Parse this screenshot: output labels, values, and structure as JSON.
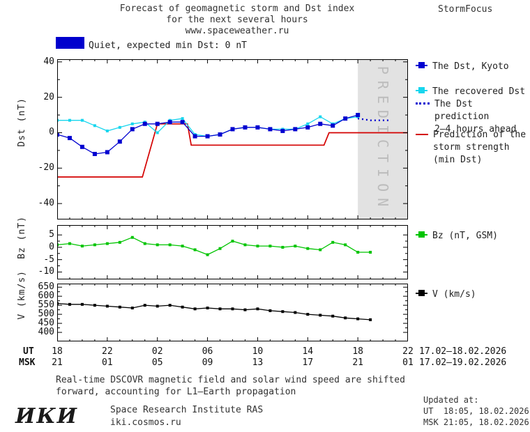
{
  "header": {
    "title_line1": "Forecast of geomagnetic storm and Dst index",
    "title_line2": "for the next several hours",
    "title_line3": "www.spaceweather.ru",
    "brand": "StormFocus"
  },
  "status": {
    "label": "Quiet, expected min Dst: 0 nT",
    "color": "#0000cd"
  },
  "legend": {
    "dst_kyoto": "The Dst, Kyoto",
    "recovered": "The recovered Dst",
    "prediction_l1": "The Dst prediction",
    "prediction_l2": "2—4 hours ahead",
    "storm_l1": "Prediction of the",
    "storm_l2": "storm strength",
    "storm_l3": "(min Dst)",
    "bz": "Bz (nT, GSM)",
    "v": "V (km/s)"
  },
  "axes": {
    "ut_label": "UT",
    "msk_label": "MSK",
    "xtick_hours": [
      0,
      4,
      8,
      12,
      16,
      20,
      24,
      28
    ],
    "ut_ticks": [
      "18",
      "22",
      "02",
      "06",
      "10",
      "14",
      "18",
      "22"
    ],
    "msk_ticks": [
      "21",
      "01",
      "05",
      "09",
      "13",
      "17",
      "21",
      "01"
    ],
    "date_range_ut": "17.02—18.02.2026",
    "date_range_msk": "17.02—19.02.2026"
  },
  "footnote": {
    "line1": "Real-time DSCOVR magnetic field and solar wind speed are shifted",
    "line2": "forward, accounting for L1—Earth propagation"
  },
  "updated": {
    "label": "Updated at:",
    "ut": "UT  18:05, 18.02.2026",
    "msk": "MSK 21:05, 18.02.2026"
  },
  "footer": {
    "logo": "ИКИ",
    "org": "Space Research Institute RAS",
    "site": "iki.cosmos.ru"
  },
  "chart_data": [
    {
      "type": "line",
      "panel": "dst",
      "title": "Forecast of geomagnetic storm and Dst index for the next several hours",
      "subtitle": "www.spaceweather.ru",
      "ylabel": "Dst (nT)",
      "xlim": [
        0,
        28
      ],
      "ylim": [
        -49,
        41.5
      ],
      "yticks": [
        40,
        20,
        0,
        -20,
        -40
      ],
      "yticks_minor": [
        30,
        10,
        -10,
        -30
      ],
      "xtick_hours": [
        0,
        4,
        8,
        12,
        16,
        20,
        24,
        28
      ],
      "legend_position": "right",
      "prediction_zone": {
        "x": [
          24,
          28
        ],
        "label": "PREDICTION",
        "fill": "#e2e2e2",
        "text_color": "#bcbcbc"
      },
      "series": [
        {
          "name": "Prediction of the storm strength (min Dst)",
          "color": "#d40000",
          "style": "solid",
          "width": 1.7,
          "x": [
            0,
            6.8,
            8,
            10.4,
            10.7,
            21.3,
            21.7,
            28
          ],
          "values": [
            -25,
            -25,
            5,
            5,
            -7,
            -7,
            0,
            0
          ]
        },
        {
          "name": "The recovered Dst",
          "color": "#17d6ee",
          "style": "solid-squares",
          "width": 1.3,
          "marker_size": 4,
          "x": [
            0,
            1,
            2,
            3,
            4,
            5,
            6,
            7,
            8,
            9,
            10,
            11,
            12,
            13,
            14,
            15,
            16,
            17,
            18,
            19,
            20,
            21,
            22,
            23,
            24
          ],
          "values": [
            7,
            7,
            7,
            4,
            1,
            3,
            5,
            6,
            0,
            7,
            8,
            -1,
            -2,
            -1,
            2,
            3,
            3,
            2,
            2,
            2,
            5,
            9,
            5,
            8,
            9
          ]
        },
        {
          "name": "The Dst, Kyoto",
          "color": "#0000d0",
          "style": "solid-squares",
          "width": 1.3,
          "marker_size": 6,
          "x": [
            0,
            1,
            2,
            3,
            4,
            5,
            6,
            7,
            8,
            9,
            10,
            11,
            12,
            13,
            14,
            15,
            16,
            17,
            18,
            19,
            20,
            21,
            22,
            23,
            24
          ],
          "values": [
            -1,
            -3,
            -8,
            -12,
            -11,
            -5,
            2,
            5,
            5,
            6,
            6,
            -2,
            -2,
            -1,
            2,
            3,
            3,
            2,
            1,
            2,
            3,
            5,
            4,
            8,
            10
          ]
        },
        {
          "name": "The Dst prediction 2—4 hours ahead",
          "color": "#0000d0",
          "style": "dotted",
          "width": 2.4,
          "x": [
            24,
            24.5,
            25,
            25.5,
            26,
            26.5
          ],
          "values": [
            8,
            7.5,
            7,
            7,
            7,
            7
          ]
        }
      ]
    },
    {
      "type": "line",
      "panel": "bz",
      "ylabel": "Bz (nT)",
      "xlim": [
        0,
        28
      ],
      "ylim": [
        -13,
        9
      ],
      "yticks": [
        5,
        0,
        -5,
        -10
      ],
      "yticks_minor": [
        2.5,
        -2.5,
        -7.5
      ],
      "xtick_hours": [
        0,
        4,
        8,
        12,
        16,
        20,
        24,
        28
      ],
      "series": [
        {
          "name": "Bz (nT, GSM)",
          "color": "#00c400",
          "style": "solid-squares",
          "width": 1.3,
          "marker_size": 4,
          "x": [
            0,
            1,
            2,
            3,
            4,
            5,
            6,
            7,
            8,
            9,
            10,
            11,
            12,
            13,
            14,
            15,
            16,
            17,
            18,
            19,
            20,
            21,
            22,
            23,
            24,
            25
          ],
          "values": [
            1,
            1.5,
            0.5,
            1,
            1.5,
            2,
            4,
            1.5,
            1,
            1,
            0.5,
            -1,
            -3,
            -0.5,
            2.5,
            1,
            0.5,
            0.5,
            0,
            0.5,
            -0.5,
            -1,
            2,
            1,
            -2,
            -2
          ]
        }
      ]
    },
    {
      "type": "line",
      "panel": "v",
      "ylabel": "V (km/s)",
      "xlim": [
        0,
        28
      ],
      "ylim": [
        350,
        670
      ],
      "yticks": [
        650,
        600,
        550,
        500,
        450,
        400
      ],
      "yticks_minor": [
        625,
        575,
        525,
        475,
        425
      ],
      "xtick_hours": [
        0,
        4,
        8,
        12,
        16,
        20,
        24,
        28
      ],
      "series": [
        {
          "name": "V (km/s)",
          "color": "#000000",
          "style": "solid-squares",
          "width": 1.3,
          "marker_size": 4,
          "x": [
            0,
            1,
            2,
            3,
            4,
            5,
            6,
            7,
            8,
            9,
            10,
            11,
            12,
            13,
            14,
            15,
            16,
            17,
            18,
            19,
            20,
            21,
            22,
            23,
            24,
            25
          ],
          "values": [
            560,
            555,
            555,
            550,
            545,
            540,
            535,
            550,
            545,
            550,
            540,
            530,
            535,
            530,
            530,
            525,
            530,
            520,
            515,
            510,
            500,
            495,
            490,
            480,
            475,
            470
          ]
        }
      ]
    }
  ]
}
